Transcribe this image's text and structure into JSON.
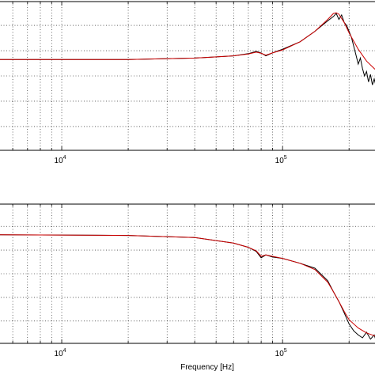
{
  "chart_data": [
    {
      "type": "line",
      "xscale": "log",
      "xlim": [
        5000,
        280000
      ],
      "ylim": [
        0,
        1
      ],
      "grid": true,
      "xticks": [
        {
          "value": 10000,
          "base": "10",
          "exp": "4"
        },
        {
          "value": 100000,
          "base": "10",
          "exp": "5"
        }
      ],
      "xlabel": "",
      "series": [
        {
          "color": "#000000",
          "x": [
            5000,
            20000,
            40000,
            60000,
            70000,
            76000,
            80000,
            84000,
            90000,
            100000,
            120000,
            140000,
            160000,
            170000,
            175000,
            180000,
            185000,
            190000,
            195000,
            200000,
            205000,
            210000,
            215000,
            220000,
            225000,
            230000,
            235000,
            240000,
            245000,
            250000,
            255000,
            260000,
            265000,
            270000,
            275000,
            280000
          ],
          "y": [
            0.61,
            0.61,
            0.62,
            0.635,
            0.65,
            0.665,
            0.655,
            0.635,
            0.655,
            0.68,
            0.73,
            0.8,
            0.87,
            0.9,
            0.92,
            0.88,
            0.91,
            0.86,
            0.84,
            0.8,
            0.76,
            0.7,
            0.64,
            0.58,
            0.62,
            0.55,
            0.5,
            0.53,
            0.46,
            0.51,
            0.44,
            0.48,
            0.43,
            0.46,
            0.44,
            0.42
          ]
        },
        {
          "color": "#cc0000",
          "x": [
            5000,
            20000,
            40000,
            60000,
            70000,
            76000,
            80000,
            84000,
            90000,
            100000,
            120000,
            140000,
            160000,
            170000,
            175000,
            180000,
            190000,
            200000,
            220000,
            240000,
            260000,
            280000
          ],
          "y": [
            0.61,
            0.61,
            0.62,
            0.635,
            0.648,
            0.66,
            0.652,
            0.64,
            0.655,
            0.675,
            0.73,
            0.8,
            0.88,
            0.92,
            0.925,
            0.915,
            0.86,
            0.79,
            0.68,
            0.6,
            0.55,
            0.51
          ]
        }
      ]
    },
    {
      "type": "line",
      "xscale": "log",
      "xlim": [
        5000,
        280000
      ],
      "ylim": [
        0,
        1
      ],
      "grid": true,
      "xticks": [
        {
          "value": 10000,
          "base": "10",
          "exp": "4"
        },
        {
          "value": 100000,
          "base": "10",
          "exp": "5"
        }
      ],
      "xlabel": "Frequency [Hz]",
      "series": [
        {
          "color": "#000000",
          "x": [
            5000,
            20000,
            40000,
            60000,
            70000,
            76000,
            80000,
            84000,
            90000,
            100000,
            120000,
            140000,
            160000,
            170000,
            180000,
            190000,
            200000,
            210000,
            220000,
            230000,
            240000,
            250000,
            260000,
            265000,
            270000,
            275000,
            280000
          ],
          "y": [
            0.78,
            0.775,
            0.76,
            0.72,
            0.69,
            0.66,
            0.615,
            0.635,
            0.62,
            0.61,
            0.575,
            0.54,
            0.45,
            0.37,
            0.3,
            0.22,
            0.14,
            0.09,
            0.06,
            0.04,
            0.08,
            0.03,
            0.06,
            0.02,
            0.07,
            0.03,
            0.04
          ]
        },
        {
          "color": "#cc0000",
          "x": [
            5000,
            20000,
            40000,
            60000,
            70000,
            76000,
            80000,
            84000,
            90000,
            100000,
            120000,
            140000,
            160000,
            170000,
            180000,
            190000,
            200000,
            220000,
            240000,
            260000,
            280000
          ],
          "y": [
            0.78,
            0.775,
            0.76,
            0.72,
            0.69,
            0.665,
            0.625,
            0.635,
            0.625,
            0.61,
            0.575,
            0.53,
            0.44,
            0.37,
            0.3,
            0.23,
            0.17,
            0.11,
            0.075,
            0.055,
            0.04
          ]
        }
      ]
    }
  ]
}
